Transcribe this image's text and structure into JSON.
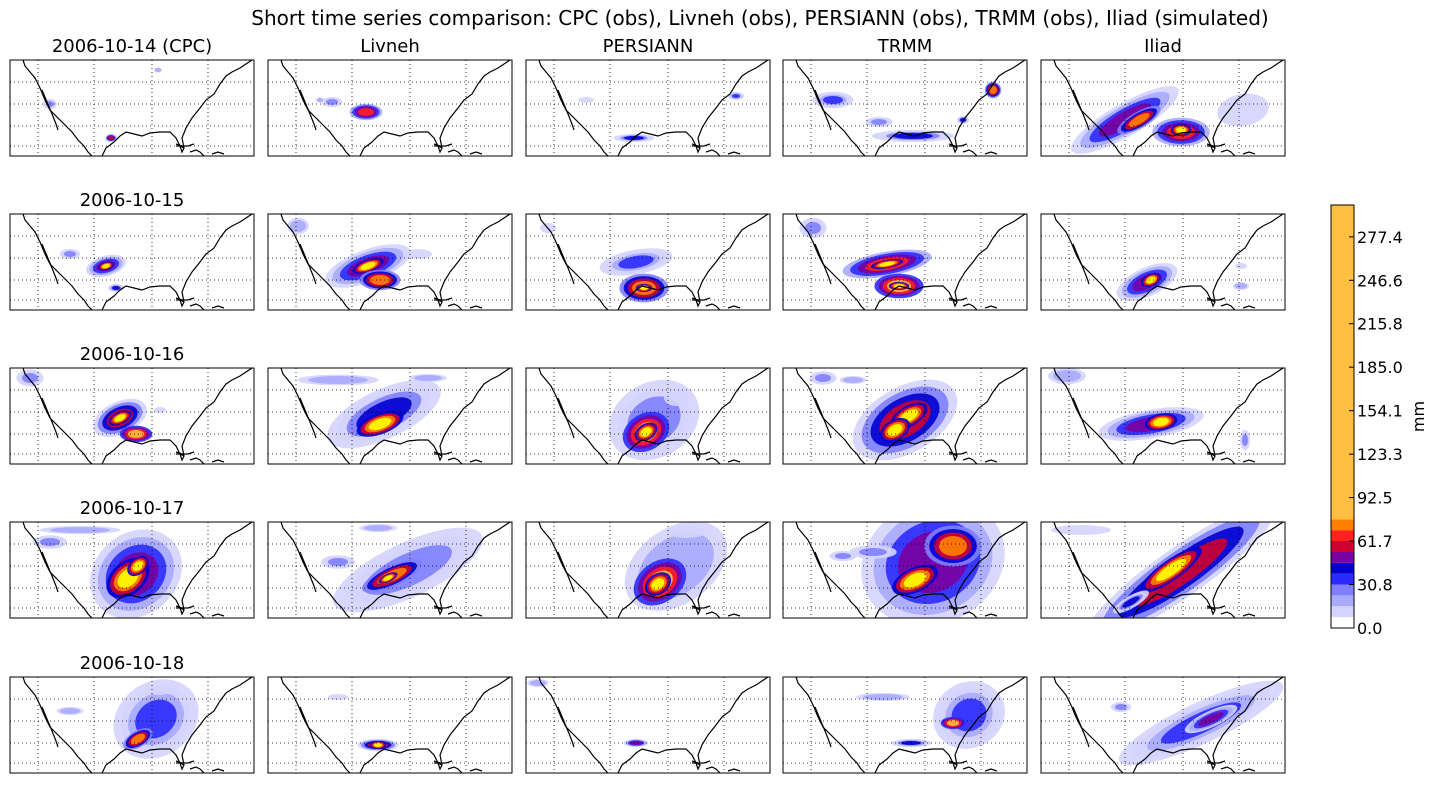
{
  "chart_data": {
    "type": "heatmap",
    "title": "Short time series comparison: CPC (obs), Livneh (obs), PERSIANN (obs), TRMM (obs), Iliad (simulated)",
    "columns": [
      "CPC",
      "Livneh",
      "PERSIANN",
      "TRMM",
      "Iliad"
    ],
    "column_titles": [
      "2006-10-14 (CPC)",
      "Livneh",
      "PERSIANN",
      "TRMM",
      "Iliad"
    ],
    "row_labels": [
      "",
      "2006-10-15",
      "2006-10-16",
      "2006-10-17",
      "2006-10-18"
    ],
    "dates": [
      "2006-10-14",
      "2006-10-15",
      "2006-10-16",
      "2006-10-17",
      "2006-10-18"
    ],
    "grid": true,
    "colorbar": {
      "label": "mm",
      "range": [
        0.0,
        300.0
      ],
      "ticks": [
        "0.0",
        "30.8",
        "61.7",
        "92.5",
        "123.3",
        "154.1",
        "185.0",
        "215.8",
        "246.6",
        "277.4"
      ],
      "tick_values": [
        0.0,
        30.8,
        61.7,
        92.5,
        123.3,
        154.1,
        185.0,
        215.8,
        246.6,
        277.4
      ],
      "levels": [
        0,
        7.7,
        15.4,
        23.1,
        30.8,
        38.5,
        46.2,
        53.9,
        61.7,
        69.4,
        77.1,
        300
      ],
      "colors": [
        "#ffffff",
        "#d4d4ff",
        "#aaaaff",
        "#7f7fff",
        "#2b2bff",
        "#0000d0",
        "#7b00a0",
        "#d00030",
        "#ff2020",
        "#ff7f00",
        "#ffbf40",
        "#ffff00"
      ]
    }
  }
}
